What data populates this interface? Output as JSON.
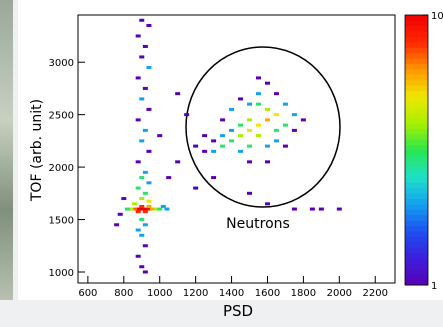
{
  "chart_data": {
    "type": "hist2d",
    "xlabel": "PSD",
    "ylabel": "TOF (arb. unit)",
    "annotation": "Neutrons",
    "xlim": [
      545,
      2310
    ],
    "xticks": [
      600,
      800,
      1000,
      1200,
      1400,
      1600,
      1800,
      2000,
      2200
    ],
    "ylim": [
      895,
      3450
    ],
    "yticks": [
      1000,
      1500,
      2000,
      2500,
      3000
    ],
    "zlim": [
      1,
      10
    ],
    "zticks": [
      1,
      10
    ],
    "zscale": "log",
    "colormap": [
      "#5a00b4",
      "#3c1edc",
      "#1e50f0",
      "#14a0f0",
      "#1ee1c8",
      "#28e650",
      "#aaf000",
      "#f0e600",
      "#ff9600",
      "#ff2800",
      "#f00000"
    ],
    "x": [
      900,
      940,
      880,
      920,
      900,
      940,
      880,
      920,
      900,
      940,
      880,
      920,
      900,
      940,
      880,
      920,
      900,
      940,
      880,
      920,
      900,
      940,
      860,
      880,
      900,
      920,
      940,
      860,
      960,
      840,
      980,
      1000,
      820,
      1020,
      1040,
      880,
      920,
      900,
      940,
      900,
      920,
      880,
      900,
      920,
      880,
      900,
      920,
      800,
      780,
      760,
      1550,
      1600,
      1500,
      1450,
      1650,
      1400,
      1350,
      1300,
      1550,
      1600,
      1500,
      1700,
      1450,
      1650,
      1550,
      1400,
      1350,
      1600,
      1700,
      1750,
      1500,
      1450,
      1300,
      1250,
      1550,
      1600,
      1650,
      1400,
      1500,
      1750,
      1800,
      1350,
      1450,
      1550,
      1250,
      1200,
      1700,
      1600,
      1500,
      1650,
      1100,
      1150,
      1000,
      1100,
      1200,
      1050,
      1850,
      1900,
      1750,
      1600,
      1500,
      1300,
      2000
    ],
    "y": [
      3400,
      3350,
      3250,
      3150,
      3050,
      2950,
      2850,
      2750,
      2650,
      2550,
      2450,
      2350,
      2250,
      2150,
      2050,
      1950,
      1900,
      1850,
      1800,
      1750,
      1700,
      1675,
      1650,
      1600,
      1600,
      1600,
      1600,
      1600,
      1600,
      1600,
      1600,
      1600,
      1600,
      1625,
      1600,
      1575,
      1575,
      1625,
      1625,
      1500,
      1450,
      1400,
      1350,
      1250,
      1150,
      1050,
      1000,
      1700,
      1550,
      1450,
      2400,
      2450,
      2350,
      2300,
      2500,
      2250,
      2200,
      2150,
      2300,
      2550,
      2450,
      2400,
      2400,
      2350,
      2600,
      2350,
      2300,
      2200,
      2600,
      2500,
      2200,
      2150,
      2250,
      2150,
      2700,
      2800,
      2700,
      2550,
      2600,
      2350,
      2450,
      2450,
      2650,
      2850,
      2300,
      2200,
      2200,
      2050,
      2050,
      2250,
      2700,
      2500,
      2300,
      2050,
      1800,
      1900,
      1600,
      1600,
      1600,
      1650,
      1750,
      1900,
      1600
    ],
    "values": [
      1,
      1,
      1,
      1,
      1,
      2,
      1,
      1,
      2,
      1,
      1,
      2,
      2,
      1,
      1,
      2,
      3,
      2,
      3,
      3,
      4,
      5,
      4,
      10,
      10,
      10,
      9,
      7,
      6,
      4,
      4,
      3,
      3,
      2,
      2,
      8,
      8,
      8,
      6,
      3,
      2,
      2,
      2,
      1,
      1,
      1,
      1,
      1,
      1,
      1,
      5,
      6,
      5,
      4,
      5,
      3,
      3,
      2,
      4,
      4,
      4,
      3,
      3,
      3,
      3,
      2,
      2,
      2,
      2,
      2,
      3,
      2,
      1,
      1,
      2,
      1,
      1,
      2,
      2,
      1,
      1,
      1,
      1,
      1,
      1,
      1,
      1,
      1,
      1,
      2,
      1,
      1,
      1,
      1,
      1,
      1,
      1,
      1,
      1,
      1,
      1,
      1,
      1
    ]
  }
}
